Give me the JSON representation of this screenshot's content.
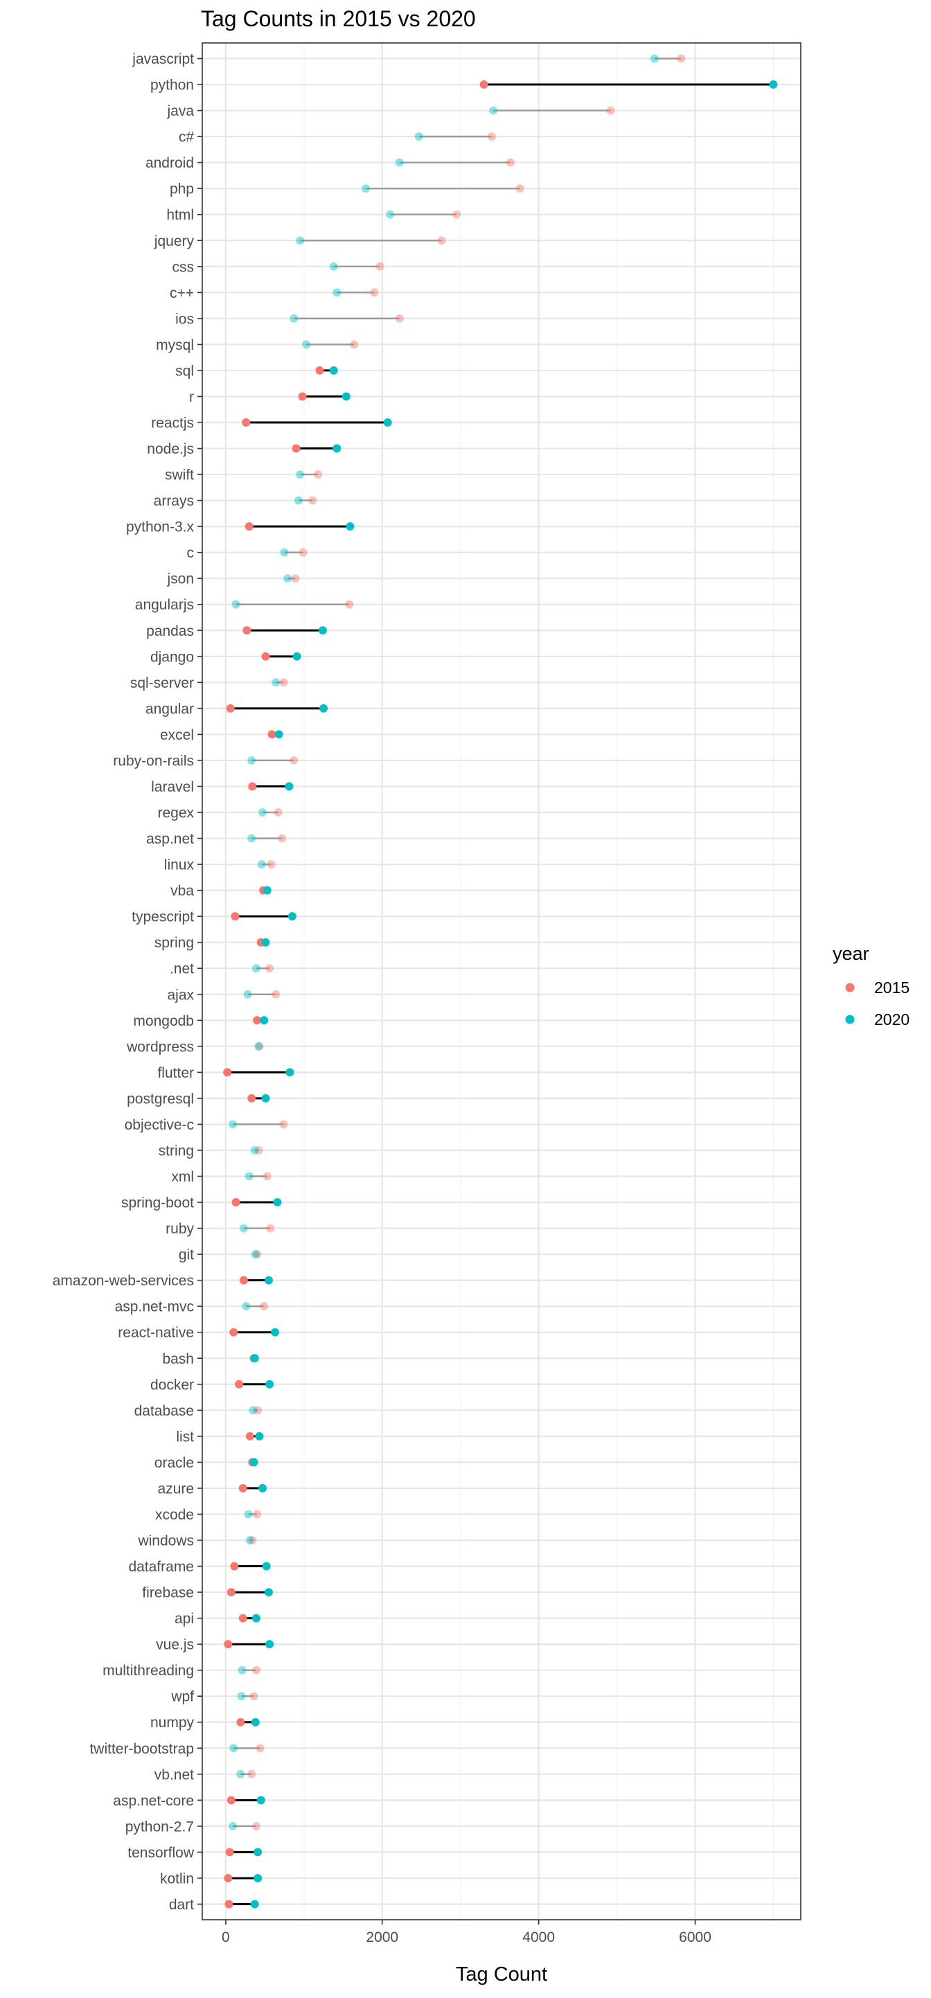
{
  "chart_data": {
    "type": "dumbbell",
    "title": "Tag Counts in 2015 vs 2020",
    "xlabel": "Tag Count",
    "ylabel": "",
    "xlim": [
      -300,
      7350
    ],
    "xticks": [
      0,
      2000,
      4000,
      6000
    ],
    "grid": true,
    "legend": {
      "title": "year",
      "position": "right",
      "entries": [
        {
          "label": "2015",
          "color": "#F8766D"
        },
        {
          "label": "2020",
          "color": "#00BFC4"
        }
      ]
    },
    "series": [
      {
        "name": "2015",
        "color": "#F8766D"
      },
      {
        "name": "2020",
        "color": "#00BFC4"
      }
    ],
    "rows": [
      {
        "tag": "javascript",
        "v2015": 5820,
        "v2020": 5480,
        "highlight": false
      },
      {
        "tag": "python",
        "v2015": 3300,
        "v2020": 7000,
        "highlight": true
      },
      {
        "tag": "java",
        "v2015": 4920,
        "v2020": 3420,
        "highlight": false
      },
      {
        "tag": "c#",
        "v2015": 3400,
        "v2020": 2470,
        "highlight": false
      },
      {
        "tag": "android",
        "v2015": 3640,
        "v2020": 2220,
        "highlight": false
      },
      {
        "tag": "php",
        "v2015": 3760,
        "v2020": 1790,
        "highlight": false
      },
      {
        "tag": "html",
        "v2015": 2950,
        "v2020": 2100,
        "highlight": false
      },
      {
        "tag": "jquery",
        "v2015": 2760,
        "v2020": 950,
        "highlight": false
      },
      {
        "tag": "css",
        "v2015": 1970,
        "v2020": 1380,
        "highlight": false
      },
      {
        "tag": "c++",
        "v2015": 1900,
        "v2020": 1420,
        "highlight": false
      },
      {
        "tag": "ios",
        "v2015": 2220,
        "v2020": 870,
        "highlight": false
      },
      {
        "tag": "mysql",
        "v2015": 1640,
        "v2020": 1030,
        "highlight": false
      },
      {
        "tag": "sql",
        "v2015": 1200,
        "v2020": 1380,
        "highlight": true
      },
      {
        "tag": "r",
        "v2015": 980,
        "v2020": 1540,
        "highlight": true
      },
      {
        "tag": "reactjs",
        "v2015": 260,
        "v2020": 2070,
        "highlight": true
      },
      {
        "tag": "node.js",
        "v2015": 900,
        "v2020": 1420,
        "highlight": true
      },
      {
        "tag": "swift",
        "v2015": 1180,
        "v2020": 950,
        "highlight": false
      },
      {
        "tag": "arrays",
        "v2015": 1110,
        "v2020": 930,
        "highlight": false
      },
      {
        "tag": "python-3.x",
        "v2015": 300,
        "v2020": 1590,
        "highlight": true
      },
      {
        "tag": "c",
        "v2015": 990,
        "v2020": 750,
        "highlight": false
      },
      {
        "tag": "json",
        "v2015": 890,
        "v2020": 790,
        "highlight": false
      },
      {
        "tag": "angularjs",
        "v2015": 1580,
        "v2020": 130,
        "highlight": false
      },
      {
        "tag": "pandas",
        "v2015": 270,
        "v2020": 1240,
        "highlight": true
      },
      {
        "tag": "django",
        "v2015": 510,
        "v2020": 910,
        "highlight": true
      },
      {
        "tag": "sql-server",
        "v2015": 740,
        "v2020": 640,
        "highlight": false
      },
      {
        "tag": "angular",
        "v2015": 60,
        "v2020": 1250,
        "highlight": true
      },
      {
        "tag": "excel",
        "v2015": 590,
        "v2020": 680,
        "highlight": true
      },
      {
        "tag": "ruby-on-rails",
        "v2015": 870,
        "v2020": 330,
        "highlight": false
      },
      {
        "tag": "laravel",
        "v2015": 340,
        "v2020": 810,
        "highlight": true
      },
      {
        "tag": "regex",
        "v2015": 670,
        "v2020": 470,
        "highlight": false
      },
      {
        "tag": "asp.net",
        "v2015": 720,
        "v2020": 330,
        "highlight": false
      },
      {
        "tag": "linux",
        "v2015": 580,
        "v2020": 460,
        "highlight": false
      },
      {
        "tag": "vba",
        "v2015": 480,
        "v2020": 530,
        "highlight": true
      },
      {
        "tag": "typescript",
        "v2015": 120,
        "v2020": 850,
        "highlight": true
      },
      {
        "tag": "spring",
        "v2015": 450,
        "v2020": 510,
        "highlight": true
      },
      {
        "tag": ".net",
        "v2015": 560,
        "v2020": 390,
        "highlight": false
      },
      {
        "tag": "ajax",
        "v2015": 640,
        "v2020": 280,
        "highlight": false
      },
      {
        "tag": "mongodb",
        "v2015": 400,
        "v2020": 490,
        "highlight": true
      },
      {
        "tag": "wordpress",
        "v2015": 430,
        "v2020": 420,
        "highlight": false
      },
      {
        "tag": "flutter",
        "v2015": 20,
        "v2020": 820,
        "highlight": true
      },
      {
        "tag": "postgresql",
        "v2015": 330,
        "v2020": 510,
        "highlight": true
      },
      {
        "tag": "objective-c",
        "v2015": 740,
        "v2020": 90,
        "highlight": false
      },
      {
        "tag": "string",
        "v2015": 420,
        "v2020": 370,
        "highlight": false
      },
      {
        "tag": "xml",
        "v2015": 530,
        "v2020": 300,
        "highlight": false
      },
      {
        "tag": "spring-boot",
        "v2015": 130,
        "v2020": 660,
        "highlight": true
      },
      {
        "tag": "ruby",
        "v2015": 570,
        "v2020": 230,
        "highlight": false
      },
      {
        "tag": "git",
        "v2015": 400,
        "v2020": 380,
        "highlight": false
      },
      {
        "tag": "amazon-web-services",
        "v2015": 230,
        "v2020": 550,
        "highlight": true
      },
      {
        "tag": "asp.net-mvc",
        "v2015": 490,
        "v2020": 260,
        "highlight": false
      },
      {
        "tag": "react-native",
        "v2015": 100,
        "v2020": 630,
        "highlight": true
      },
      {
        "tag": "bash",
        "v2015": 360,
        "v2020": 370,
        "highlight": true
      },
      {
        "tag": "docker",
        "v2015": 170,
        "v2020": 560,
        "highlight": true
      },
      {
        "tag": "database",
        "v2015": 410,
        "v2020": 350,
        "highlight": false
      },
      {
        "tag": "list",
        "v2015": 310,
        "v2020": 430,
        "highlight": true
      },
      {
        "tag": "oracle",
        "v2015": 340,
        "v2020": 360,
        "highlight": true
      },
      {
        "tag": "azure",
        "v2015": 220,
        "v2020": 470,
        "highlight": true
      },
      {
        "tag": "xcode",
        "v2015": 400,
        "v2020": 290,
        "highlight": false
      },
      {
        "tag": "windows",
        "v2015": 340,
        "v2020": 310,
        "highlight": false
      },
      {
        "tag": "dataframe",
        "v2015": 110,
        "v2020": 520,
        "highlight": true
      },
      {
        "tag": "firebase",
        "v2015": 70,
        "v2020": 550,
        "highlight": true
      },
      {
        "tag": "api",
        "v2015": 220,
        "v2020": 390,
        "highlight": true
      },
      {
        "tag": "vue.js",
        "v2015": 30,
        "v2020": 560,
        "highlight": true
      },
      {
        "tag": "multithreading",
        "v2015": 390,
        "v2020": 210,
        "highlight": false
      },
      {
        "tag": "wpf",
        "v2015": 360,
        "v2020": 200,
        "highlight": false
      },
      {
        "tag": "numpy",
        "v2015": 190,
        "v2020": 380,
        "highlight": true
      },
      {
        "tag": "twitter-bootstrap",
        "v2015": 440,
        "v2020": 100,
        "highlight": false
      },
      {
        "tag": "vb.net",
        "v2015": 330,
        "v2020": 190,
        "highlight": false
      },
      {
        "tag": "asp.net-core",
        "v2015": 70,
        "v2020": 450,
        "highlight": true
      },
      {
        "tag": "python-2.7",
        "v2015": 390,
        "v2020": 90,
        "highlight": false
      },
      {
        "tag": "tensorflow",
        "v2015": 50,
        "v2020": 410,
        "highlight": true
      },
      {
        "tag": "kotlin",
        "v2015": 30,
        "v2020": 410,
        "highlight": true
      },
      {
        "tag": "dart",
        "v2015": 40,
        "v2020": 370,
        "highlight": true
      }
    ]
  }
}
